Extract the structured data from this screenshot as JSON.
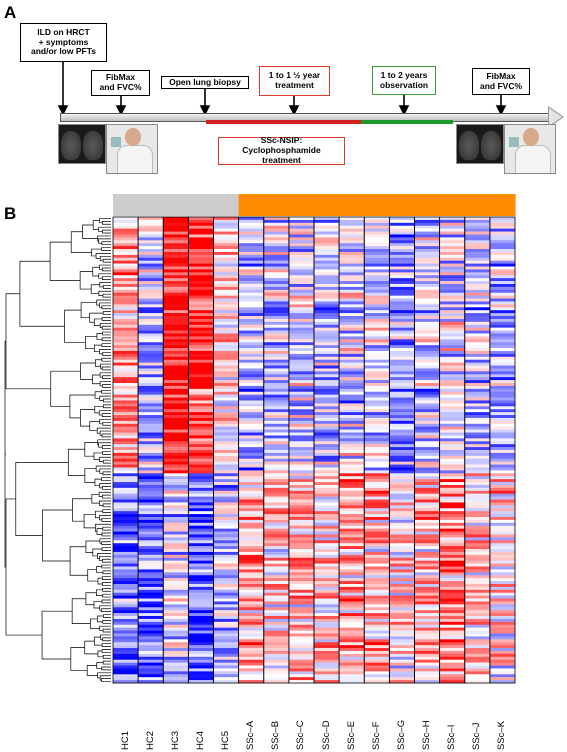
{
  "panel_a": {
    "label": "A",
    "boxes": {
      "ild": [
        "ILD on HRCT",
        "+ symptoms",
        "and/or low PFTs"
      ],
      "fibmax_start": [
        "FibMax",
        "and FVC%"
      ],
      "biopsy": [
        "Open lung biopsy"
      ],
      "treatment_duration": [
        "1 to 1 ½ year",
        "treatment"
      ],
      "observation": [
        "1 to 2 years",
        "observation"
      ],
      "fibmax_end": [
        "FibMax",
        "and FVC%"
      ],
      "treatment_name": [
        "SSc-NSIP:",
        "Cyclophosphamide treatment"
      ]
    }
  },
  "panel_b": {
    "label": "B",
    "group_colors": {
      "HC": "#cccccc",
      "SSc": "#ff8c00"
    },
    "heatmap_colors": {
      "low": "#1010ff",
      "mid": "#ffffff",
      "high": "#ff1010"
    },
    "columns": [
      "HC1",
      "HC2",
      "HC3",
      "HC4",
      "HC5",
      "SSc–A",
      "SSc–B",
      "SSc–C",
      "SSc–D",
      "SSc–E",
      "SSc–F",
      "SSc–G",
      "SSc–H",
      "SSc–I",
      "SSc–J",
      "SSc–K"
    ],
    "column_groups": [
      "HC",
      "HC",
      "HC",
      "HC",
      "HC",
      "SSc",
      "SSc",
      "SSc",
      "SSc",
      "SSc",
      "SSc",
      "SSc",
      "SSc",
      "SSc",
      "SSc",
      "SSc"
    ]
  }
}
